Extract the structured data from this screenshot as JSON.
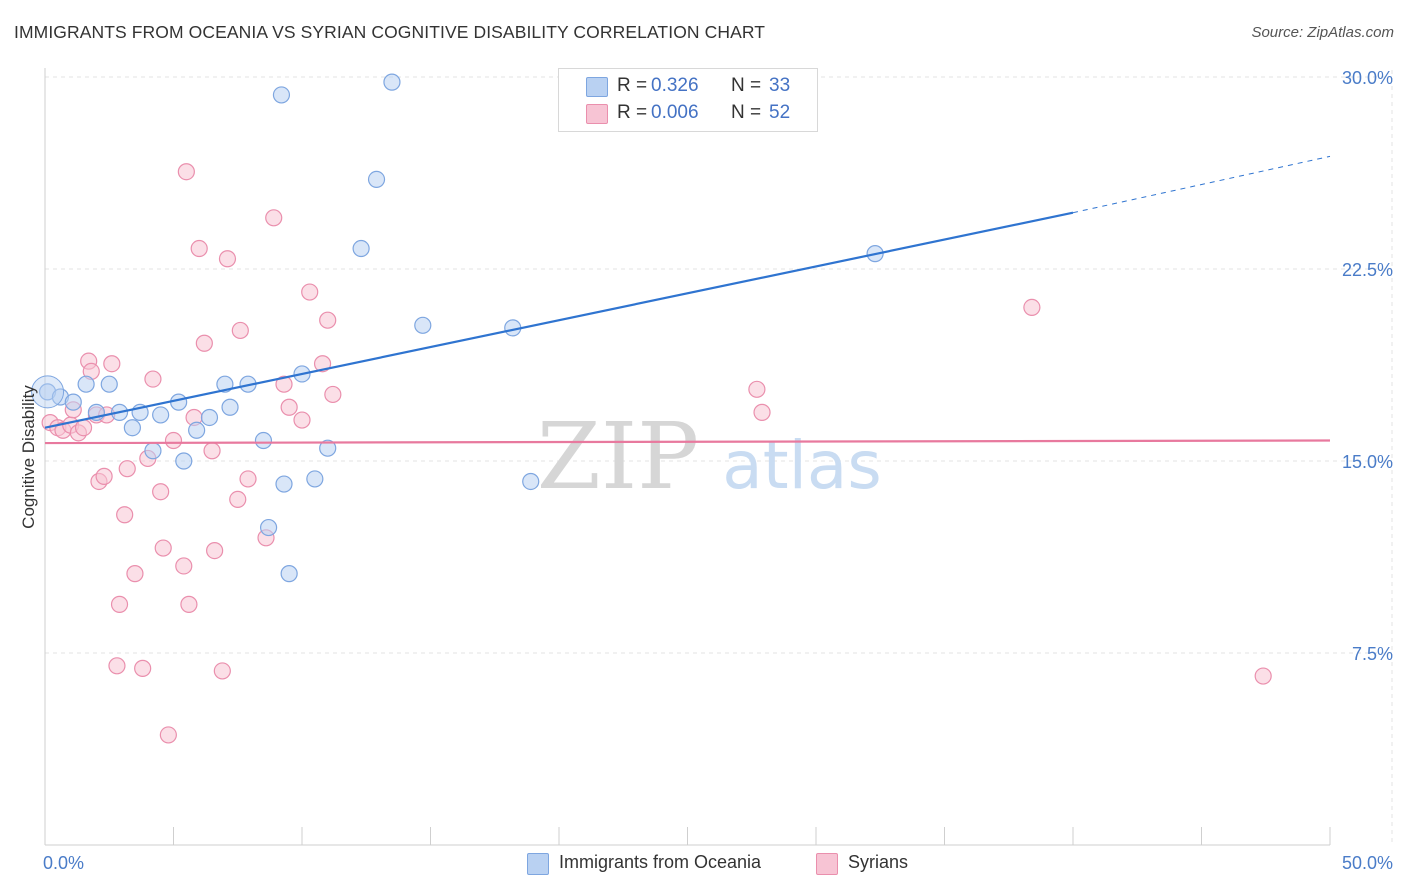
{
  "title": "IMMIGRANTS FROM OCEANIA VS SYRIAN COGNITIVE DISABILITY CORRELATION CHART",
  "source": "Source: ZipAtlas.com",
  "watermark": {
    "zip": "ZIP",
    "atlas": "atlas"
  },
  "colors": {
    "blue_fill": "#b9d1f2",
    "blue_stroke": "#7ea6e0",
    "blue_line": "#2f74d0",
    "pink_fill": "#f7c4d4",
    "pink_stroke": "#ea8fad",
    "pink_line": "#e8799e",
    "axis_text": "#4a7cc8",
    "grid": "#e3e3e3"
  },
  "legend_top": [
    {
      "r_label": "R =",
      "r_value": "0.326",
      "n_label": "N =",
      "n_value": "33",
      "series": "blue"
    },
    {
      "r_label": "R =",
      "r_value": "0.006",
      "n_label": "N =",
      "n_value": "52",
      "series": "pink"
    }
  ],
  "legend_bottom": [
    {
      "label": "Immigrants from Oceania",
      "series": "blue"
    },
    {
      "label": "Syrians",
      "series": "pink"
    }
  ],
  "chart_data": {
    "type": "scatter",
    "title": "IMMIGRANTS FROM OCEANIA VS SYRIAN COGNITIVE DISABILITY CORRELATION CHART",
    "xlabel": "",
    "ylabel": "Cognitive Disability",
    "xlim": [
      0,
      50
    ],
    "ylim": [
      0,
      31.5
    ],
    "x_tick_labels": [
      {
        "value": 0,
        "label": "0.0%"
      },
      {
        "value": 50,
        "label": "50.0%"
      }
    ],
    "y_tick_labels": [
      {
        "value": 7.5,
        "label": "7.5%"
      },
      {
        "value": 15,
        "label": "15.0%"
      },
      {
        "value": 22.5,
        "label": "22.5%"
      },
      {
        "value": 30,
        "label": "30.0%"
      }
    ],
    "grid": true,
    "series": [
      {
        "name": "Immigrants from Oceania",
        "color": "blue",
        "points": [
          [
            0.1,
            17.7
          ],
          [
            0.6,
            17.5
          ],
          [
            1.1,
            17.3
          ],
          [
            1.6,
            18.0
          ],
          [
            2.0,
            16.9
          ],
          [
            2.5,
            18.0
          ],
          [
            2.9,
            16.9
          ],
          [
            3.4,
            16.3
          ],
          [
            3.7,
            16.9
          ],
          [
            4.2,
            15.4
          ],
          [
            4.5,
            16.8
          ],
          [
            5.2,
            17.3
          ],
          [
            5.4,
            15.0
          ],
          [
            5.9,
            16.2
          ],
          [
            6.4,
            16.7
          ],
          [
            7.0,
            18.0
          ],
          [
            7.2,
            17.1
          ],
          [
            7.9,
            18.0
          ],
          [
            8.5,
            15.8
          ],
          [
            8.7,
            12.4
          ],
          [
            9.3,
            14.1
          ],
          [
            9.5,
            10.6
          ],
          [
            10.0,
            18.4
          ],
          [
            10.5,
            14.3
          ],
          [
            11.0,
            15.5
          ],
          [
            9.2,
            29.3
          ],
          [
            13.5,
            29.8
          ],
          [
            12.9,
            26.0
          ],
          [
            12.3,
            23.3
          ],
          [
            14.7,
            20.3
          ],
          [
            18.2,
            20.2
          ],
          [
            18.9,
            14.2
          ],
          [
            32.3,
            23.1
          ]
        ],
        "trend": {
          "x_start": 0,
          "y_start": 16.3,
          "x_solid_end": 40,
          "y_solid_end": 24.7,
          "x_end": 50,
          "y_end": 26.9
        }
      },
      {
        "name": "Syrians",
        "color": "pink",
        "points": [
          [
            0.2,
            16.5
          ],
          [
            0.5,
            16.3
          ],
          [
            0.7,
            16.2
          ],
          [
            1.0,
            16.4
          ],
          [
            1.1,
            17.0
          ],
          [
            1.3,
            16.1
          ],
          [
            1.5,
            16.3
          ],
          [
            1.7,
            18.9
          ],
          [
            1.8,
            18.5
          ],
          [
            2.0,
            16.8
          ],
          [
            2.1,
            14.2
          ],
          [
            2.3,
            14.4
          ],
          [
            2.6,
            18.8
          ],
          [
            2.8,
            7.0
          ],
          [
            2.9,
            9.4
          ],
          [
            3.1,
            12.9
          ],
          [
            3.2,
            14.7
          ],
          [
            3.5,
            10.6
          ],
          [
            3.8,
            6.9
          ],
          [
            4.0,
            15.1
          ],
          [
            4.2,
            18.2
          ],
          [
            4.5,
            13.8
          ],
          [
            4.6,
            11.6
          ],
          [
            4.8,
            4.3
          ],
          [
            5.0,
            15.8
          ],
          [
            5.4,
            10.9
          ],
          [
            5.5,
            26.3
          ],
          [
            5.6,
            9.4
          ],
          [
            5.8,
            16.7
          ],
          [
            6.0,
            23.3
          ],
          [
            6.2,
            19.6
          ],
          [
            6.5,
            15.4
          ],
          [
            6.6,
            11.5
          ],
          [
            6.9,
            6.8
          ],
          [
            7.1,
            22.9
          ],
          [
            7.5,
            13.5
          ],
          [
            7.6,
            20.1
          ],
          [
            7.9,
            14.3
          ],
          [
            8.6,
            12.0
          ],
          [
            8.9,
            24.5
          ],
          [
            9.3,
            18.0
          ],
          [
            9.5,
            17.1
          ],
          [
            10.0,
            16.6
          ],
          [
            10.3,
            21.6
          ],
          [
            10.8,
            18.8
          ],
          [
            11.0,
            20.5
          ],
          [
            11.2,
            17.6
          ],
          [
            27.7,
            17.8
          ],
          [
            27.9,
            16.9
          ],
          [
            38.4,
            21.0
          ],
          [
            47.4,
            6.6
          ],
          [
            2.4,
            16.8
          ]
        ],
        "trend": {
          "x_start": 0,
          "y_start": 15.7,
          "x_end": 50,
          "y_end": 15.8
        }
      }
    ]
  }
}
